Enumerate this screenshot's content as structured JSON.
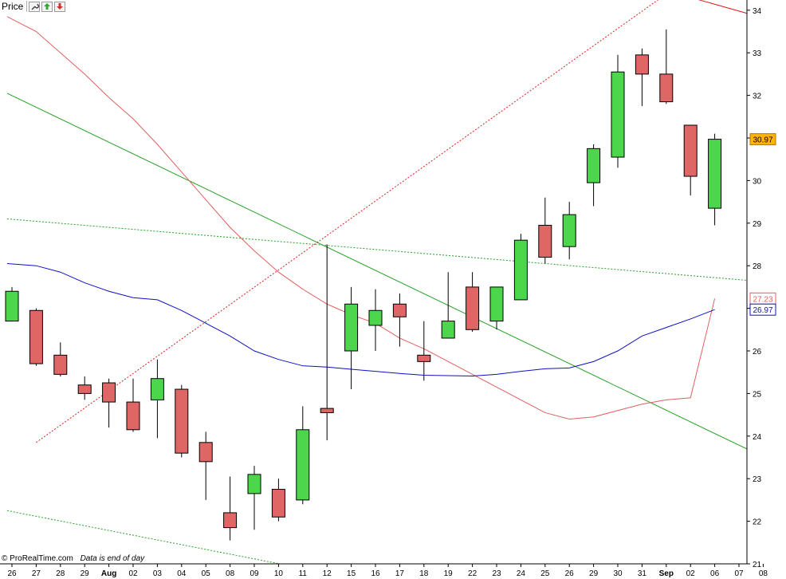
{
  "toolbar": {
    "title": "Price",
    "icons": [
      "wrench-icon",
      "arrow-up-icon",
      "arrow-down-icon"
    ]
  },
  "footer": {
    "brand": "© ProRealTime.com",
    "note": "Data is end of day"
  },
  "colors": {
    "up_candle": "#4cd64c",
    "down_candle": "#e06666",
    "price_badge": "#ffb400",
    "ma_red": "#e06060",
    "ma_blue": "#1010c0",
    "trend_green": "#28a028",
    "trend_red_dotted": "#dd2020"
  },
  "badges": {
    "last_price": "30.97",
    "ma_red_value": "27.23",
    "ma_blue_value": "26.97"
  },
  "chart_data": {
    "type": "candlestick",
    "ylim": [
      21,
      34.3
    ],
    "y_ticks": [
      "21",
      "22",
      "23",
      "24",
      "25",
      "26",
      "27",
      "28",
      "29",
      "30",
      "31",
      "32",
      "33",
      "34"
    ],
    "x_labels": [
      "26",
      "27",
      "28",
      "29",
      "Aug",
      "02",
      "03",
      "04",
      "05",
      "08",
      "09",
      "10",
      "11",
      "12",
      "15",
      "16",
      "17",
      "18",
      "19",
      "22",
      "23",
      "24",
      "25",
      "26",
      "29",
      "30",
      "31",
      "Sep",
      "02",
      "06",
      "07",
      "08"
    ],
    "bold_x_labels": [
      "Aug",
      "Sep"
    ],
    "candles": [
      {
        "o": 26.7,
        "h": 27.5,
        "l": 26.7,
        "c": 27.4
      },
      {
        "o": 26.95,
        "h": 27.0,
        "l": 25.65,
        "c": 25.7
      },
      {
        "o": 25.9,
        "h": 26.2,
        "l": 25.4,
        "c": 25.45
      },
      {
        "o": 25.2,
        "h": 25.4,
        "l": 24.85,
        "c": 25.0
      },
      {
        "o": 25.25,
        "h": 25.35,
        "l": 24.2,
        "c": 24.8
      },
      {
        "o": 24.8,
        "h": 25.35,
        "l": 24.1,
        "c": 24.15
      },
      {
        "o": 24.85,
        "h": 25.8,
        "l": 23.95,
        "c": 25.35
      },
      {
        "o": 25.1,
        "h": 25.2,
        "l": 23.5,
        "c": 23.6
      },
      {
        "o": 23.85,
        "h": 24.1,
        "l": 22.5,
        "c": 23.4
      },
      {
        "o": 22.2,
        "h": 23.05,
        "l": 21.55,
        "c": 21.85
      },
      {
        "o": 22.65,
        "h": 23.3,
        "l": 21.8,
        "c": 23.1
      },
      {
        "o": 22.75,
        "h": 23.0,
        "l": 22.0,
        "c": 22.1
      },
      {
        "o": 22.5,
        "h": 24.7,
        "l": 22.4,
        "c": 24.15
      },
      {
        "o": 24.65,
        "h": 28.5,
        "l": 23.9,
        "c": 24.55
      },
      {
        "o": 26.0,
        "h": 27.5,
        "l": 25.1,
        "c": 27.1
      },
      {
        "o": 26.6,
        "h": 27.45,
        "l": 26.0,
        "c": 26.95
      },
      {
        "o": 27.1,
        "h": 27.35,
        "l": 26.1,
        "c": 26.8
      },
      {
        "o": 25.9,
        "h": 26.7,
        "l": 25.3,
        "c": 25.75
      },
      {
        "o": 26.3,
        "h": 27.85,
        "l": 26.3,
        "c": 26.7
      },
      {
        "o": 27.5,
        "h": 27.85,
        "l": 26.45,
        "c": 26.5
      },
      {
        "o": 26.7,
        "h": 27.5,
        "l": 26.5,
        "c": 27.5
      },
      {
        "o": 27.2,
        "h": 28.75,
        "l": 27.2,
        "c": 28.6
      },
      {
        "o": 28.95,
        "h": 29.6,
        "l": 28.05,
        "c": 28.2
      },
      {
        "o": 28.45,
        "h": 29.5,
        "l": 28.15,
        "c": 29.2
      },
      {
        "o": 29.95,
        "h": 30.85,
        "l": 29.4,
        "c": 30.75
      },
      {
        "o": 30.55,
        "h": 32.95,
        "l": 30.3,
        "c": 32.55
      },
      {
        "o": 32.95,
        "h": 33.1,
        "l": 31.75,
        "c": 32.5
      },
      {
        "o": 32.5,
        "h": 33.55,
        "l": 31.8,
        "c": 31.85
      },
      {
        "o": 31.3,
        "h": 31.3,
        "l": 29.65,
        "c": 30.1
      },
      {
        "o": 29.35,
        "h": 31.1,
        "l": 28.95,
        "c": 30.97
      }
    ],
    "moving_average_red": [
      [
        -0.2,
        33.85
      ],
      [
        1,
        33.5
      ],
      [
        2,
        33.0
      ],
      [
        3,
        32.5
      ],
      [
        4,
        31.95
      ],
      [
        5,
        31.45
      ],
      [
        6,
        30.85
      ],
      [
        7,
        30.2
      ],
      [
        8,
        29.55
      ],
      [
        9,
        28.9
      ],
      [
        10,
        28.35
      ],
      [
        11,
        27.85
      ],
      [
        12,
        27.45
      ],
      [
        13,
        27.1
      ],
      [
        14,
        26.85
      ],
      [
        15,
        26.65
      ],
      [
        16,
        26.3
      ],
      [
        17,
        26.05
      ],
      [
        18,
        25.75
      ],
      [
        19,
        25.45
      ],
      [
        20,
        25.15
      ],
      [
        21,
        24.85
      ],
      [
        22,
        24.55
      ],
      [
        23,
        24.4
      ],
      [
        24,
        24.45
      ],
      [
        25,
        24.6
      ],
      [
        26,
        24.75
      ],
      [
        27,
        24.85
      ],
      [
        28,
        24.9
      ],
      [
        29,
        27.23
      ]
    ],
    "moving_average_blue": [
      [
        -0.2,
        28.05
      ],
      [
        1,
        28.0
      ],
      [
        2,
        27.85
      ],
      [
        3,
        27.6
      ],
      [
        4,
        27.4
      ],
      [
        5,
        27.25
      ],
      [
        6,
        27.2
      ],
      [
        7,
        26.95
      ],
      [
        8,
        26.65
      ],
      [
        9,
        26.35
      ],
      [
        10,
        26.0
      ],
      [
        11,
        25.8
      ],
      [
        12,
        25.65
      ],
      [
        13,
        25.62
      ],
      [
        14,
        25.57
      ],
      [
        15,
        25.52
      ],
      [
        16,
        25.47
      ],
      [
        17,
        25.43
      ],
      [
        18,
        25.42
      ],
      [
        19,
        25.41
      ],
      [
        20,
        25.45
      ],
      [
        21,
        25.52
      ],
      [
        22,
        25.58
      ],
      [
        23,
        25.6
      ],
      [
        24,
        25.75
      ],
      [
        25,
        26.0
      ],
      [
        26,
        26.35
      ],
      [
        27,
        26.55
      ],
      [
        28,
        26.75
      ],
      [
        29,
        26.97
      ]
    ],
    "trend_lines": [
      {
        "style": "solid",
        "color": "trend_green",
        "from": [
          -0.2,
          32.05
        ],
        "to": [
          30.5,
          23.65
        ]
      },
      {
        "style": "dotted",
        "color": "trend_green",
        "from": [
          -0.2,
          29.1
        ],
        "to": [
          30.5,
          27.65
        ]
      },
      {
        "style": "dotted",
        "color": "trend_green",
        "from": [
          -0.2,
          22.25
        ],
        "to": [
          11.5,
          20.95
        ]
      },
      {
        "style": "dotted",
        "color": "trend_red_dotted",
        "from": [
          1,
          23.85
        ],
        "to": [
          26.8,
          34.3
        ]
      },
      {
        "style": "solid",
        "color": "trend_red_dotted",
        "from": [
          28.0,
          34.3
        ],
        "to": [
          30.5,
          33.9
        ]
      }
    ]
  }
}
